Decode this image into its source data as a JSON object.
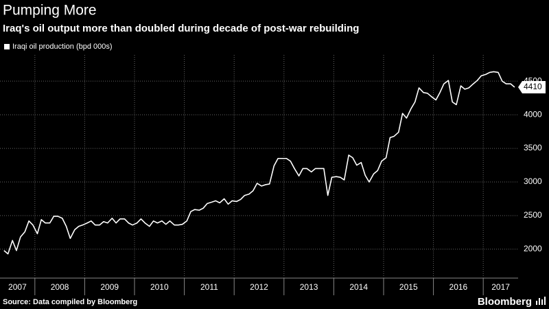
{
  "chart_data": {
    "type": "line",
    "title": "Pumping More",
    "subtitle": "Iraq's oil output more than doubled during decade of post-war rebuilding",
    "source": "Source: Data compiled by Bloomberg",
    "brand": "Bloomberg",
    "x_band_labels": [
      "2007",
      "2008",
      "2009",
      "2010",
      "2011",
      "2012",
      "2013",
      "2014",
      "2015",
      "2016",
      "2017"
    ],
    "xlim": [
      2007.3,
      2017.7
    ],
    "xticks": [
      2008,
      2009,
      2010,
      2011,
      2012,
      2013,
      2014,
      2015,
      2016,
      2017
    ],
    "ylim": [
      1570,
      4890
    ],
    "yticks": [
      2000,
      2500,
      3000,
      3500,
      4000,
      4500
    ],
    "grid": true,
    "x": [
      2007.38,
      2007.46,
      2007.55,
      2007.63,
      2007.71,
      2007.8,
      2007.88,
      2007.96,
      2008.05,
      2008.13,
      2008.21,
      2008.3,
      2008.38,
      2008.46,
      2008.55,
      2008.63,
      2008.71,
      2008.8,
      2008.88,
      2008.96,
      2009.05,
      2009.13,
      2009.21,
      2009.3,
      2009.38,
      2009.46,
      2009.55,
      2009.63,
      2009.71,
      2009.8,
      2009.88,
      2009.96,
      2010.05,
      2010.13,
      2010.21,
      2010.3,
      2010.38,
      2010.46,
      2010.55,
      2010.63,
      2010.71,
      2010.8,
      2010.88,
      2010.96,
      2011.05,
      2011.13,
      2011.21,
      2011.3,
      2011.38,
      2011.46,
      2011.55,
      2011.63,
      2011.71,
      2011.8,
      2011.88,
      2011.96,
      2012.05,
      2012.13,
      2012.21,
      2012.3,
      2012.38,
      2012.46,
      2012.55,
      2012.63,
      2012.71,
      2012.8,
      2012.88,
      2012.96,
      2013.05,
      2013.13,
      2013.21,
      2013.3,
      2013.38,
      2013.46,
      2013.55,
      2013.63,
      2013.71,
      2013.8,
      2013.88,
      2013.96,
      2014.05,
      2014.13,
      2014.21,
      2014.3,
      2014.38,
      2014.46,
      2014.55,
      2014.63,
      2014.71,
      2014.8,
      2014.88,
      2014.96,
      2015.05,
      2015.13,
      2015.21,
      2015.3,
      2015.38,
      2015.46,
      2015.55,
      2015.63,
      2015.71,
      2015.8,
      2015.88,
      2015.96,
      2016.05,
      2016.13,
      2016.21,
      2016.3,
      2016.38,
      2016.46,
      2016.55,
      2016.63,
      2016.71,
      2016.8,
      2016.88,
      2016.96,
      2017.05,
      2017.13,
      2017.21,
      2017.3,
      2017.38,
      2017.46,
      2017.55,
      2017.63
    ],
    "series": [
      {
        "name": "Iraqi oil production (bpd 000s)",
        "color": "#ffffff",
        "values": [
          1980,
          1930,
          2130,
          1980,
          2180,
          2260,
          2420,
          2360,
          2230,
          2440,
          2390,
          2390,
          2490,
          2490,
          2460,
          2340,
          2160,
          2290,
          2340,
          2360,
          2390,
          2420,
          2360,
          2360,
          2410,
          2390,
          2460,
          2390,
          2450,
          2450,
          2390,
          2360,
          2390,
          2450,
          2390,
          2340,
          2420,
          2390,
          2420,
          2370,
          2420,
          2360,
          2360,
          2370,
          2420,
          2560,
          2590,
          2580,
          2610,
          2680,
          2700,
          2720,
          2690,
          2750,
          2670,
          2720,
          2710,
          2740,
          2800,
          2820,
          2870,
          2980,
          2940,
          2960,
          2970,
          3240,
          3350,
          3350,
          3350,
          3310,
          3200,
          3090,
          3200,
          3200,
          3150,
          3200,
          3200,
          3200,
          2800,
          3070,
          3080,
          3070,
          3030,
          3400,
          3360,
          3250,
          3290,
          3100,
          3000,
          3120,
          3170,
          3310,
          3360,
          3660,
          3680,
          3740,
          4020,
          3950,
          4090,
          4190,
          4400,
          4330,
          4320,
          4270,
          4220,
          4330,
          4460,
          4510,
          4190,
          4150,
          4430,
          4380,
          4400,
          4460,
          4510,
          4580,
          4600,
          4630,
          4640,
          4630,
          4500,
          4460,
          4460,
          4410
        ]
      }
    ]
  }
}
